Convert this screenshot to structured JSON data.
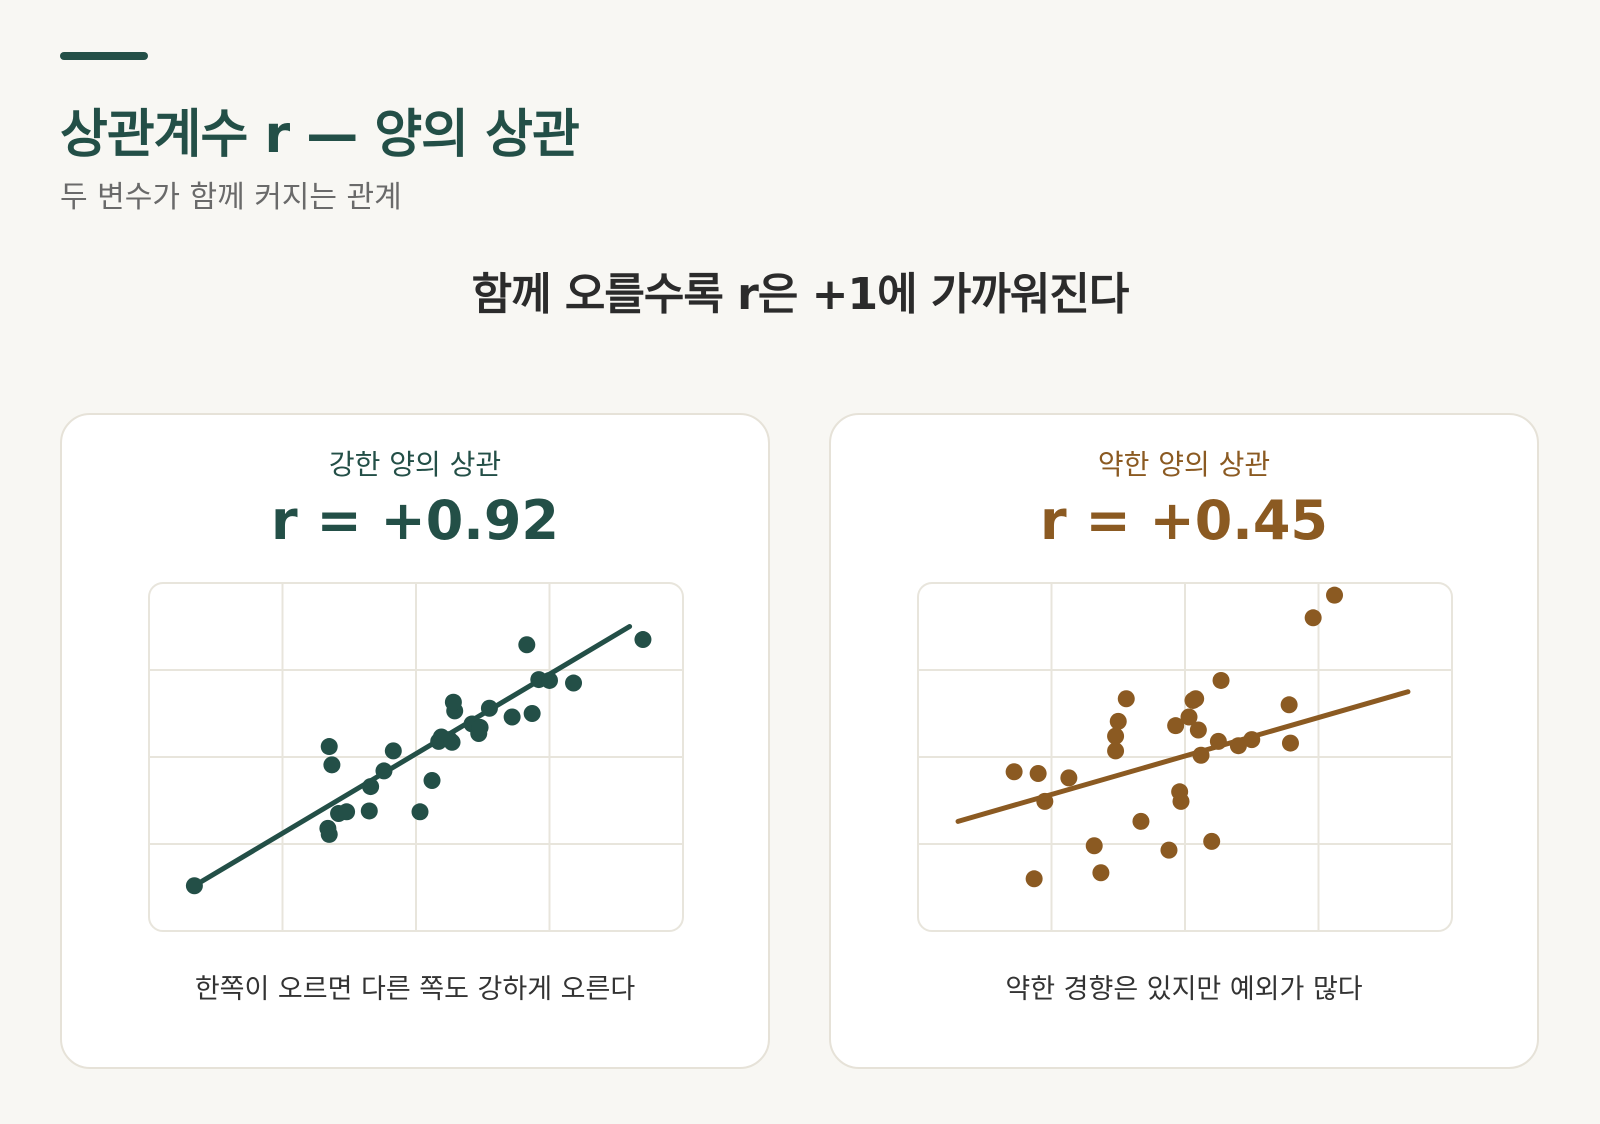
{
  "header": {
    "title": "상관계수 r — 양의 상관",
    "subtitle": "두 변수가 함께 커지는 관계"
  },
  "headline": "함께 오를수록 r은 +1에 가까워진다",
  "colors": {
    "strong": "#234f47",
    "weak": "#8b5a22",
    "grid": "#e8e5dc",
    "accent": "#234f47"
  },
  "panels": [
    {
      "label": "강한 양의 상관",
      "r_text": "r = +0.92",
      "caption": "한쪽이 오르면 다른 쪽도 강하게 오른다",
      "color": "#234f47"
    },
    {
      "label": "약한 양의 상관",
      "r_text": "r = +0.45",
      "caption": "약한 경향은 있지만 예외가 많다",
      "color": "#8b5a22"
    }
  ],
  "chart_data": [
    {
      "type": "scatter",
      "title": "강한 양의 상관",
      "r": 0.92,
      "xlim": [
        0,
        4
      ],
      "ylim": [
        0,
        4
      ],
      "grid": true,
      "points": [
        [
          0.34,
          0.52
        ],
        [
          1.35,
          2.12
        ],
        [
          1.37,
          1.91
        ],
        [
          1.34,
          1.18
        ],
        [
          1.35,
          1.11
        ],
        [
          1.42,
          1.35
        ],
        [
          1.48,
          1.37
        ],
        [
          1.65,
          1.38
        ],
        [
          1.66,
          1.66
        ],
        [
          1.76,
          1.84
        ],
        [
          1.83,
          2.07
        ],
        [
          2.03,
          1.37
        ],
        [
          2.12,
          1.73
        ],
        [
          2.17,
          2.18
        ],
        [
          2.19,
          2.23
        ],
        [
          2.25,
          2.2
        ],
        [
          2.27,
          2.17
        ],
        [
          2.29,
          2.53
        ],
        [
          2.28,
          2.63
        ],
        [
          2.42,
          2.38
        ],
        [
          2.47,
          2.27
        ],
        [
          2.48,
          2.34
        ],
        [
          2.55,
          2.56
        ],
        [
          2.72,
          2.46
        ],
        [
          2.87,
          2.5
        ],
        [
          2.83,
          3.29
        ],
        [
          2.92,
          2.89
        ],
        [
          3.0,
          2.88
        ],
        [
          3.18,
          2.85
        ],
        [
          3.7,
          3.35
        ]
      ],
      "trendline": {
        "x": [
          0.34,
          3.6
        ],
        "y": [
          0.52,
          3.5
        ]
      }
    },
    {
      "type": "scatter",
      "title": "약한 양의 상관",
      "r": 0.45,
      "xlim": [
        0,
        4
      ],
      "ylim": [
        0,
        4
      ],
      "grid": true,
      "points": [
        [
          0.72,
          1.83
        ],
        [
          0.9,
          1.81
        ],
        [
          0.95,
          1.49
        ],
        [
          1.13,
          1.76
        ],
        [
          0.87,
          0.6
        ],
        [
          1.32,
          0.98
        ],
        [
          1.37,
          0.67
        ],
        [
          1.48,
          2.07
        ],
        [
          1.48,
          2.24
        ],
        [
          1.5,
          2.41
        ],
        [
          1.56,
          2.67
        ],
        [
          1.67,
          1.26
        ],
        [
          1.88,
          0.93
        ],
        [
          1.93,
          2.36
        ],
        [
          1.96,
          1.6
        ],
        [
          1.97,
          1.49
        ],
        [
          2.03,
          2.46
        ],
        [
          2.06,
          2.65
        ],
        [
          2.08,
          2.67
        ],
        [
          2.1,
          2.31
        ],
        [
          2.12,
          2.02
        ],
        [
          2.2,
          1.03
        ],
        [
          2.25,
          2.18
        ],
        [
          2.27,
          2.88
        ],
        [
          2.4,
          2.13
        ],
        [
          2.5,
          2.2
        ],
        [
          2.78,
          2.6
        ],
        [
          2.79,
          2.16
        ],
        [
          2.96,
          3.6
        ],
        [
          3.12,
          3.86
        ]
      ],
      "trendline": {
        "x": [
          0.3,
          3.67
        ],
        "y": [
          1.26,
          2.75
        ]
      }
    }
  ]
}
